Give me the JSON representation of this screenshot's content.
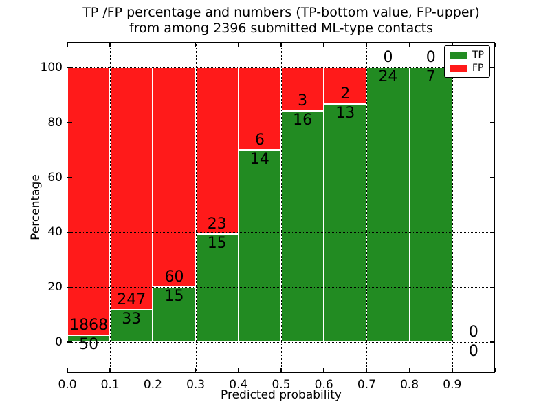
{
  "title": {
    "line1": "TP /FP percentage and numbers (TP-bottom value, FP-upper)",
    "line2": "from among 2396 submitted ML-type contacts"
  },
  "axes": {
    "xlabel": "Predicted probability",
    "ylabel": "Percentage",
    "x_tick_labels": [
      "0.0",
      "0.1",
      "0.2",
      "0.3",
      "0.4",
      "0.5",
      "0.6",
      "0.7",
      "0.8",
      "0.9"
    ],
    "y_tick_labels": [
      "0",
      "20",
      "40",
      "60",
      "80",
      "100"
    ]
  },
  "legend": {
    "items": [
      {
        "label": "TP",
        "color": "#228B22"
      },
      {
        "label": "FP",
        "color": "#FF1A1A"
      }
    ]
  },
  "colors": {
    "tp_green": "#228B22",
    "fp_red": "#FF1A1A",
    "grid": "#000000",
    "background": "#ffffff",
    "bar_edge": "#ffffff"
  },
  "chart_data": {
    "type": "bar",
    "stacked": true,
    "percent_normalized": true,
    "title": "TP /FP percentage and numbers (TP-bottom value, FP-upper) from among 2396 submitted ML-type contacts",
    "xlabel": "Predicted probability",
    "ylabel": "Percentage",
    "total_contacts": 2396,
    "bin_width": 0.1,
    "categories": [
      0.0,
      0.1,
      0.2,
      0.3,
      0.4,
      0.5,
      0.6,
      0.7,
      0.8,
      0.9
    ],
    "series": [
      {
        "name": "TP",
        "color": "#228B22",
        "counts": [
          50,
          33,
          15,
          15,
          14,
          16,
          13,
          24,
          7,
          0
        ]
      },
      {
        "name": "FP",
        "color": "#FF1A1A",
        "counts": [
          1868,
          247,
          60,
          23,
          6,
          3,
          2,
          0,
          0,
          0
        ]
      }
    ],
    "tp_percent": [
      2.61,
      11.79,
      20.0,
      39.47,
      70.0,
      84.21,
      86.67,
      100.0,
      100.0,
      null
    ],
    "xlim": [
      0.0,
      1.0
    ],
    "ylim": [
      -11,
      109
    ],
    "y_gridlines": [
      0,
      20,
      40,
      60,
      80,
      100
    ],
    "grid_style": "dotted",
    "legend_position": "upper right"
  }
}
